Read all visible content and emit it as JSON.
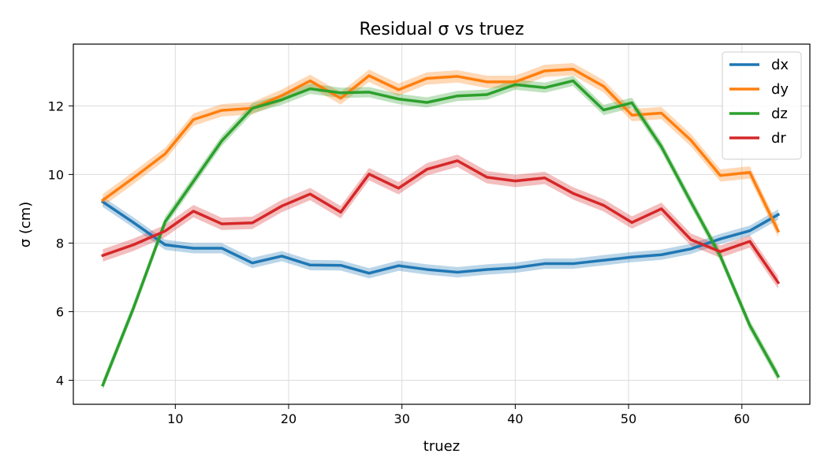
{
  "chart_data": {
    "type": "line",
    "title": "Residual σ vs truez",
    "xlabel": "truez",
    "ylabel": "σ (cm)",
    "xlim": [
      1.0,
      66.0
    ],
    "ylim": [
      3.3,
      13.8
    ],
    "xticks": [
      10,
      20,
      30,
      40,
      50,
      60
    ],
    "yticks": [
      4,
      6,
      8,
      10,
      12
    ],
    "grid": true,
    "legend_position": "top-right",
    "x": [
      3.6,
      6.3,
      9.1,
      11.6,
      14.1,
      16.8,
      19.4,
      21.9,
      24.6,
      27.1,
      29.7,
      32.2,
      34.9,
      37.5,
      40.0,
      42.6,
      45.1,
      47.8,
      50.3,
      52.9,
      55.5,
      58.1,
      60.7,
      63.2
    ],
    "series": [
      {
        "name": "dx",
        "color": "#1f77b4",
        "values": [
          9.2,
          8.6,
          7.95,
          7.85,
          7.85,
          7.42,
          7.62,
          7.36,
          7.35,
          7.12,
          7.34,
          7.23,
          7.15,
          7.23,
          7.28,
          7.4,
          7.4,
          7.5,
          7.59,
          7.66,
          7.83,
          8.12,
          8.36,
          8.83
        ],
        "band": 0.15
      },
      {
        "name": "dy",
        "color": "#ff7f0e",
        "values": [
          9.25,
          9.9,
          10.6,
          11.6,
          11.87,
          11.93,
          12.3,
          12.73,
          12.22,
          12.88,
          12.47,
          12.8,
          12.86,
          12.7,
          12.7,
          13.02,
          13.07,
          12.57,
          11.73,
          11.79,
          11.0,
          9.97,
          10.06,
          8.35
        ],
        "band": 0.18
      },
      {
        "name": "dz",
        "color": "#2ca02c",
        "values": [
          3.86,
          6.1,
          8.62,
          9.8,
          10.98,
          11.93,
          12.18,
          12.5,
          12.38,
          12.4,
          12.2,
          12.1,
          12.29,
          12.33,
          12.62,
          12.53,
          12.73,
          11.88,
          12.09,
          10.81,
          9.2,
          7.62,
          5.6,
          4.12
        ],
        "band": 0.15
      },
      {
        "name": "dr",
        "color": "#d62728",
        "values": [
          7.64,
          7.95,
          8.35,
          8.93,
          8.56,
          8.59,
          9.08,
          9.43,
          8.9,
          10.01,
          9.6,
          10.15,
          10.4,
          9.92,
          9.81,
          9.9,
          9.45,
          9.1,
          8.6,
          9.0,
          8.1,
          7.75,
          8.05,
          6.85
        ],
        "band": 0.18
      }
    ]
  }
}
